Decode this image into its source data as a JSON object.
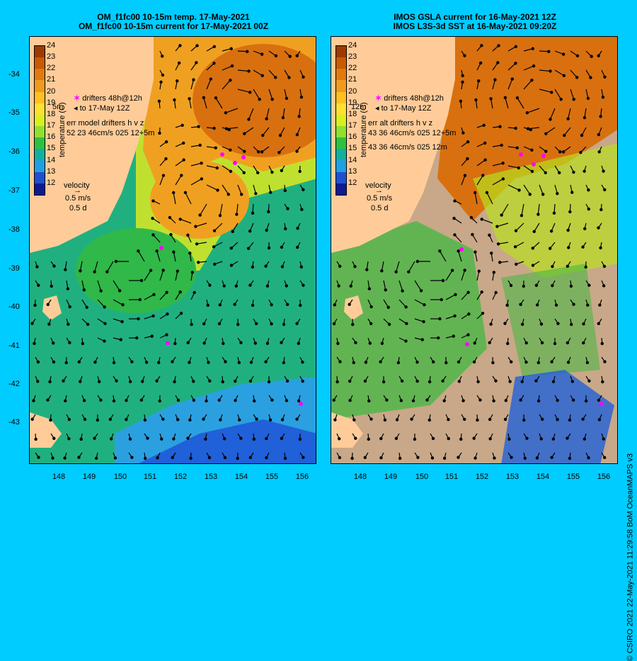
{
  "left": {
    "title_line1": "OM_f1fc00 10-15m temp. 17-May-2021",
    "title_line2": "OM_f1fc00 10-15m current for 17-May-2021 00Z",
    "legend_drifters": "drifters 48h@12h",
    "legend_to": "to 17-May 12Z",
    "legend_err": "err model drifters h v z",
    "legend_err_vals": "52 23 46cm/s 025 12+5m",
    "depth_label": "5m"
  },
  "right": {
    "title_line1": "IMOS GSLA current for 16-May-2021 12Z",
    "title_line2": "IMOS L3S-3d SST at 16-May-2021 09:20Z",
    "legend_drifters": "drifters 48h@12h",
    "legend_to": "to 17-May 12Z",
    "legend_err": "err alt drifters h v z",
    "legend_err_vals1": "43 36 46cm/s 025 12+5m",
    "legend_err_vals2": "43 36 46cm/s 025 12m",
    "depth_label": "12m"
  },
  "colorbar": {
    "title": "temperature (C)",
    "ticks": [
      "24",
      "23",
      "22",
      "21",
      "20",
      "19",
      "18",
      "17",
      "16",
      "15",
      "14",
      "13",
      "12"
    ],
    "colors": [
      "#9e3a00",
      "#c85a00",
      "#e07a10",
      "#f09a20",
      "#ffc020",
      "#ffe030",
      "#d8f020",
      "#90e030",
      "#30c040",
      "#10b0a0",
      "#20a0e0",
      "#2050d0",
      "#101a90"
    ]
  },
  "velocity_legend": {
    "label": "velocity",
    "speed": "0.5 m/s",
    "duration": "0.5 d"
  },
  "lat_labels": [
    "-34",
    "-35",
    "-36",
    "-37",
    "-38",
    "-39",
    "-40",
    "-41",
    "-42",
    "-43"
  ],
  "lon_labels": [
    "148",
    "149",
    "150",
    "151",
    "152",
    "153",
    "154",
    "155",
    "156"
  ],
  "copyright": "© CSIRO 2021   22-May-2021 11:29:58 BoM OceanMAPS v3",
  "colors": {
    "background": "#00ccff",
    "land": "#ffcc99",
    "cloud": "#c8a888",
    "drifter": "#ff00ff"
  }
}
